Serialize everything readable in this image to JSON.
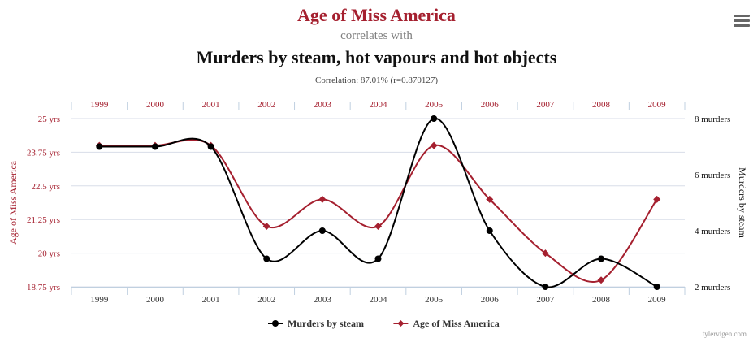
{
  "titles": {
    "first": "Age of Miss America",
    "connector": "correlates with",
    "second": "Murders by steam, hot vapours and hot objects",
    "correlation": "Correlation: 87.01% (r=0.870127)"
  },
  "menu": {
    "icon": "hamburger-menu-icon"
  },
  "credit": "tylervigen.com",
  "colors": {
    "black_series": "#000000",
    "red_series": "#a5202f",
    "grid": "#d8dde8",
    "axis": "#c0d0e0"
  },
  "chart_data": {
    "type": "line",
    "x": [
      "1999",
      "2000",
      "2001",
      "2002",
      "2003",
      "2004",
      "2005",
      "2006",
      "2007",
      "2008",
      "2009"
    ],
    "series": [
      {
        "name": "Murders by steam",
        "color": "#000000",
        "marker": "circle",
        "axis": "right",
        "values": [
          7,
          7,
          7,
          3,
          4,
          3,
          8,
          4,
          2,
          3,
          2
        ]
      },
      {
        "name": "Age of Miss America",
        "color": "#a5202f",
        "marker": "diamond",
        "axis": "left",
        "values": [
          24,
          24,
          24,
          21,
          22,
          21,
          24,
          22,
          20,
          19,
          22
        ]
      }
    ],
    "left_axis": {
      "label": "Age of Miss America",
      "ylim": [
        18.75,
        25
      ],
      "ticks": [
        25,
        23.75,
        22.5,
        21.25,
        20,
        18.75
      ],
      "tick_labels": [
        "25 yrs",
        "23.75 yrs",
        "22.5 yrs",
        "21.25 yrs",
        "20 yrs",
        "18.75 yrs"
      ]
    },
    "right_axis": {
      "label": "Murders by steam",
      "ylim": [
        2,
        8
      ],
      "ticks": [
        8,
        6,
        4,
        2
      ],
      "tick_labels": [
        "8 murders",
        "6 murders",
        "4 murders",
        "2 murders"
      ]
    },
    "legend": {
      "position": "bottom-center"
    },
    "grid": true
  }
}
